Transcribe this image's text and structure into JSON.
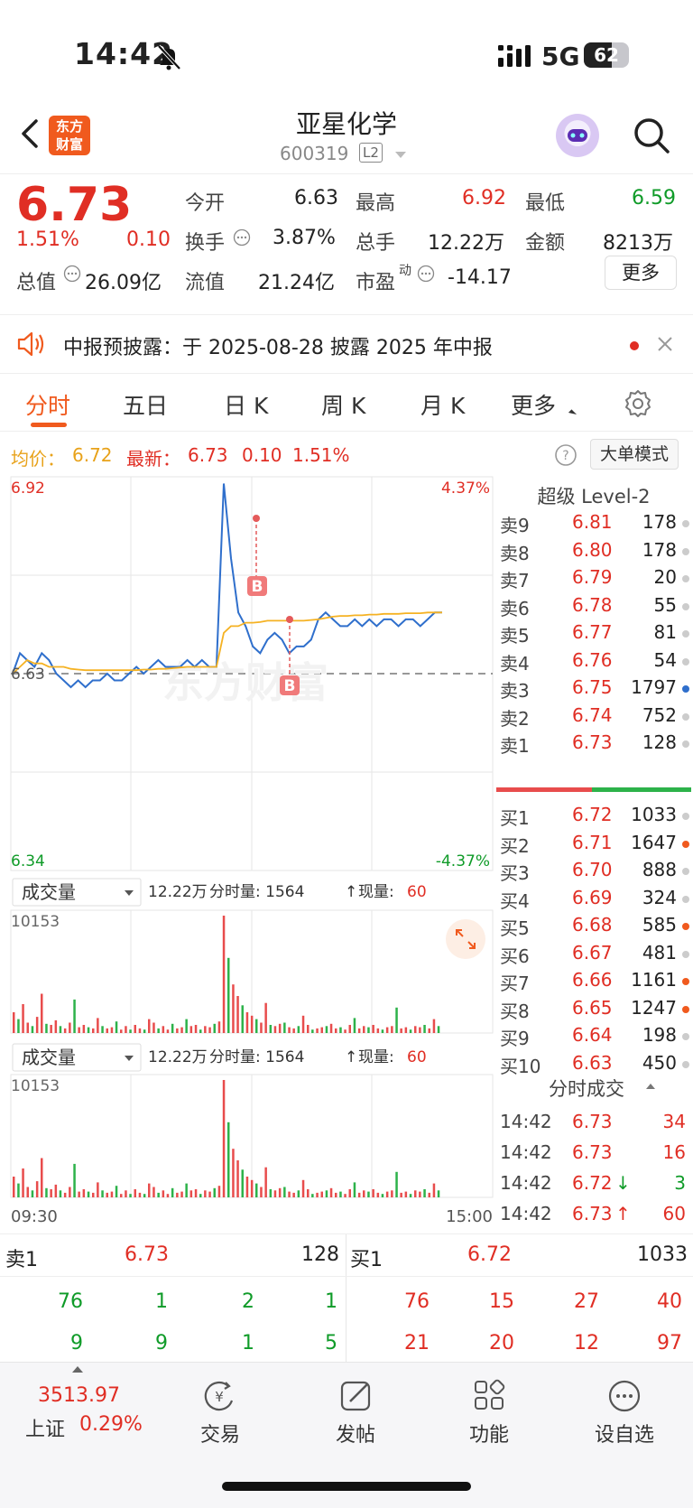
{
  "status": {
    "time": "14:42",
    "network": "5G",
    "battery": "62",
    "battery_level": 0.62
  },
  "nav": {
    "title": "亚星化学",
    "code": "600319",
    "level": "L2",
    "logo_line1": "东方",
    "logo_line2": "财富"
  },
  "quote": {
    "price": "6.73",
    "pct": "1.51%",
    "chg": "0.10",
    "open_label": "今开",
    "open": "6.63",
    "high_label": "最高",
    "high": "6.92",
    "low_label": "最低",
    "low": "6.59",
    "turnover_label": "换手",
    "turnover": "3.87%",
    "volume_label": "总手",
    "volume": "12.22万",
    "amount_label": "金额",
    "amount": "8213万",
    "mktcap_label": "总值",
    "mktcap": "26.09亿",
    "float_label": "流值",
    "float": "21.24亿",
    "pe_label": "市盈",
    "pe_sup": "动",
    "pe": "-14.17",
    "more": "更多"
  },
  "notice": {
    "text": "中报预披露：于 2025-08-28 披露 2025 年中报"
  },
  "tabs": [
    "分时",
    "五日",
    "日 K",
    "周 K",
    "月 K",
    "更多"
  ],
  "avgbar": {
    "avg_label": "均价：",
    "avg": "6.72",
    "latest_label": "最新：",
    "latest": "6.73",
    "chg": "0.10",
    "pct": "1.51%",
    "mode": "大单模式"
  },
  "chart": {
    "high_label": "6.92",
    "low_label": "6.34",
    "base_label": "6.63",
    "pct_high": "4.37%",
    "pct_low": "-4.37%",
    "vol_selector": "成交量",
    "vol_summary_total": "12.22万",
    "vol_summary_fenshi": "分时量: 1564",
    "vol_summary_now_label": "现量:",
    "vol_now": "60",
    "vol_max": "10153",
    "time_start": "09:30",
    "time_end": "15:00",
    "marker": "B",
    "watermark": "东方财富"
  },
  "chart_data": {
    "type": "line",
    "y_range": [
      6.34,
      6.92
    ],
    "prev_close": 6.63,
    "series": [
      {
        "color": "#2f6fcc",
        "values": [
          6.63,
          6.66,
          6.65,
          6.64,
          6.66,
          6.65,
          6.63,
          6.62,
          6.61,
          6.62,
          6.61,
          6.62,
          6.62,
          6.63,
          6.62,
          6.62,
          6.63,
          6.64,
          6.63,
          6.64,
          6.65,
          6.64,
          6.64,
          6.64,
          6.65,
          6.64,
          6.65,
          6.64,
          6.64,
          6.91,
          6.8,
          6.72,
          6.7,
          6.67,
          6.66,
          6.68,
          6.69,
          6.68,
          6.66,
          6.67,
          6.67,
          6.68,
          6.71,
          6.72,
          6.71,
          6.7,
          6.7,
          6.71,
          6.7,
          6.71,
          6.7,
          6.71,
          6.71,
          6.7,
          6.71,
          6.71,
          6.7,
          6.71,
          6.72,
          6.72
        ]
      },
      {
        "color": "#f5b223",
        "values": [
          6.63,
          6.64,
          6.65,
          6.645,
          6.645,
          6.64,
          6.64,
          6.64,
          6.637,
          6.636,
          6.635,
          6.635,
          6.635,
          6.635,
          6.635,
          6.635,
          6.635,
          6.635,
          6.636,
          6.636,
          6.637,
          6.637,
          6.638,
          6.639,
          6.64,
          6.64,
          6.64,
          6.64,
          6.64,
          6.69,
          6.7,
          6.7,
          6.705,
          6.705,
          6.706,
          6.708,
          6.708,
          6.708,
          6.708,
          6.708,
          6.708,
          6.709,
          6.71,
          6.712,
          6.714,
          6.715,
          6.715,
          6.716,
          6.716,
          6.717,
          6.717,
          6.718,
          6.718,
          6.718,
          6.719,
          6.719,
          6.719,
          6.72,
          6.72,
          6.72
        ]
      }
    ],
    "volume_max": 10153,
    "volume": [
      1800,
      1200,
      2500,
      900,
      600,
      1400,
      3400,
      800,
      700,
      1100,
      600,
      400,
      900,
      2900,
      500,
      700,
      500,
      400,
      1300,
      600,
      400,
      500,
      1000,
      300,
      600,
      300,
      700,
      400,
      300,
      1200,
      900,
      400,
      600,
      300,
      800,
      400,
      500,
      1200,
      600,
      700,
      300,
      600,
      500,
      800,
      1000,
      10153,
      6500,
      4200,
      3200,
      2400,
      1800,
      1500,
      1200,
      900,
      2600,
      700,
      600,
      800,
      900,
      500,
      400,
      600,
      1500,
      700,
      300,
      400,
      500,
      600,
      800,
      400,
      500,
      300,
      700,
      1300,
      400,
      600,
      500,
      700,
      400,
      300,
      500,
      600,
      2200,
      400,
      500,
      300,
      600,
      500,
      700,
      400,
      1200,
      600
    ],
    "volume_colors": "mixed red/green bars"
  },
  "book": {
    "title": "超级 Level-2",
    "asks": [
      {
        "label": "卖9",
        "price": "6.81",
        "vol": "178"
      },
      {
        "label": "卖8",
        "price": "6.80",
        "vol": "178"
      },
      {
        "label": "卖7",
        "price": "6.79",
        "vol": "20"
      },
      {
        "label": "卖6",
        "price": "6.78",
        "vol": "55"
      },
      {
        "label": "卖5",
        "price": "6.77",
        "vol": "81"
      },
      {
        "label": "卖4",
        "price": "6.76",
        "vol": "54"
      },
      {
        "label": "卖3",
        "price": "6.75",
        "vol": "1797"
      },
      {
        "label": "卖2",
        "price": "6.74",
        "vol": "752"
      },
      {
        "label": "卖1",
        "price": "6.73",
        "vol": "128"
      }
    ],
    "bids": [
      {
        "label": "买1",
        "price": "6.72",
        "vol": "1033"
      },
      {
        "label": "买2",
        "price": "6.71",
        "vol": "1647"
      },
      {
        "label": "买3",
        "price": "6.70",
        "vol": "888"
      },
      {
        "label": "买4",
        "price": "6.69",
        "vol": "324"
      },
      {
        "label": "买5",
        "price": "6.68",
        "vol": "585"
      },
      {
        "label": "买6",
        "price": "6.67",
        "vol": "481"
      },
      {
        "label": "买7",
        "price": "6.66",
        "vol": "1161"
      },
      {
        "label": "买8",
        "price": "6.65",
        "vol": "1247"
      },
      {
        "label": "买9",
        "price": "6.64",
        "vol": "198"
      },
      {
        "label": "买10",
        "price": "6.63",
        "vol": "450"
      }
    ]
  },
  "ticks": {
    "title": "分时成交",
    "rows": [
      {
        "time": "14:42",
        "price": "6.73",
        "vol": "34",
        "arrow": ""
      },
      {
        "time": "14:42",
        "price": "6.73",
        "vol": "16",
        "arrow": ""
      },
      {
        "time": "14:42",
        "price": "6.72",
        "vol": "3",
        "arrow": "↓"
      },
      {
        "time": "14:42",
        "price": "6.73",
        "vol": "60",
        "arrow": "↑"
      }
    ]
  },
  "bottombook": {
    "sell_label": "卖1",
    "sell_price": "6.73",
    "sell_vol": "128",
    "buy_label": "买1",
    "buy_price": "6.72",
    "buy_vol": "1033",
    "sell_row1": [
      "76",
      "1",
      "2",
      "1"
    ],
    "sell_row2": [
      "9",
      "9",
      "1",
      "5"
    ],
    "buy_row1": [
      "76",
      "15",
      "27",
      "40"
    ],
    "buy_row2": [
      "21",
      "20",
      "12",
      "97"
    ]
  },
  "footer": {
    "index_value": "3513.97",
    "index_name": "上证",
    "index_pct": "0.29%",
    "items": [
      "交易",
      "发帖",
      "功能",
      "设自选"
    ]
  }
}
